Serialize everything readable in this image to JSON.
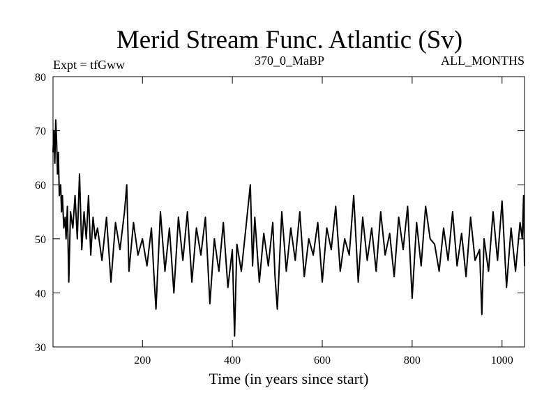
{
  "chart_data": {
    "type": "line",
    "title": "Merid Stream Func. Atlantic (Sv)",
    "subtitle_left": "Expt = tfGww",
    "subtitle_center": "370_0_MaBP",
    "subtitle_right": "ALL_MONTHS",
    "xlabel": "Time (in years since start)",
    "ylabel": "",
    "xlim": [
      1,
      1050
    ],
    "ylim": [
      30,
      80
    ],
    "x_ticks": [
      {
        "value": 200,
        "label": "200"
      },
      {
        "value": 400,
        "label": "400"
      },
      {
        "value": 600,
        "label": "600"
      },
      {
        "value": 800,
        "label": "800"
      },
      {
        "value": 1000,
        "label": "1000"
      }
    ],
    "y_ticks": [
      {
        "value": 30,
        "label": "30"
      },
      {
        "value": 40,
        "label": "40"
      },
      {
        "value": 50,
        "label": "50"
      },
      {
        "value": 60,
        "label": "60"
      },
      {
        "value": 70,
        "label": "70"
      },
      {
        "value": 80,
        "label": "80"
      }
    ],
    "grid": false,
    "line_color": "#000000",
    "series": [
      {
        "x": [
          1,
          3,
          5,
          7,
          9,
          11,
          13,
          15,
          18,
          20,
          22,
          25,
          28,
          30,
          33,
          36,
          40,
          45,
          50,
          55,
          60,
          65,
          70,
          75,
          80,
          85,
          90,
          95,
          100,
          110,
          120,
          130,
          140,
          150,
          160,
          165,
          170,
          180,
          190,
          200,
          210,
          220,
          225,
          230,
          240,
          250,
          260,
          270,
          280,
          290,
          300,
          310,
          320,
          330,
          340,
          350,
          360,
          370,
          380,
          390,
          400,
          405,
          410,
          420,
          430,
          440,
          445,
          450,
          460,
          470,
          480,
          490,
          495,
          500,
          510,
          520,
          530,
          540,
          550,
          560,
          570,
          580,
          590,
          600,
          610,
          620,
          630,
          640,
          650,
          660,
          670,
          680,
          690,
          700,
          710,
          720,
          730,
          740,
          750,
          760,
          770,
          780,
          790,
          800,
          810,
          820,
          830,
          840,
          850,
          860,
          870,
          880,
          890,
          900,
          910,
          920,
          930,
          940,
          950,
          955,
          960,
          970,
          980,
          990,
          1000,
          1010,
          1020,
          1030,
          1040,
          1045,
          1048,
          1050
        ],
        "values": [
          66,
          70,
          64,
          72,
          68,
          62,
          66,
          58,
          60,
          55,
          58,
          52,
          54,
          50,
          56,
          42,
          55,
          52,
          58,
          50,
          62,
          48,
          55,
          50,
          58,
          47,
          54,
          50,
          52,
          46,
          54,
          42,
          53,
          48,
          55,
          60,
          44,
          53,
          47,
          50,
          45,
          52,
          44,
          37,
          55,
          44,
          52,
          40,
          54,
          46,
          55,
          42,
          52,
          47,
          54,
          38,
          50,
          44,
          53,
          41,
          48,
          32,
          49,
          44,
          52,
          60,
          45,
          54,
          42,
          51,
          45,
          53,
          43,
          37,
          55,
          44,
          52,
          46,
          55,
          43,
          50,
          47,
          53,
          42,
          52,
          48,
          56,
          44,
          50,
          47,
          58,
          42,
          54,
          46,
          52,
          44,
          55,
          47,
          51,
          43,
          54,
          48,
          56,
          39,
          53,
          45,
          56,
          50,
          49,
          44,
          52,
          46,
          55,
          45,
          51,
          43,
          54,
          46,
          48,
          36,
          50,
          44,
          55,
          46,
          57,
          41,
          52,
          44,
          53,
          50,
          58,
          45
        ]
      }
    ]
  }
}
